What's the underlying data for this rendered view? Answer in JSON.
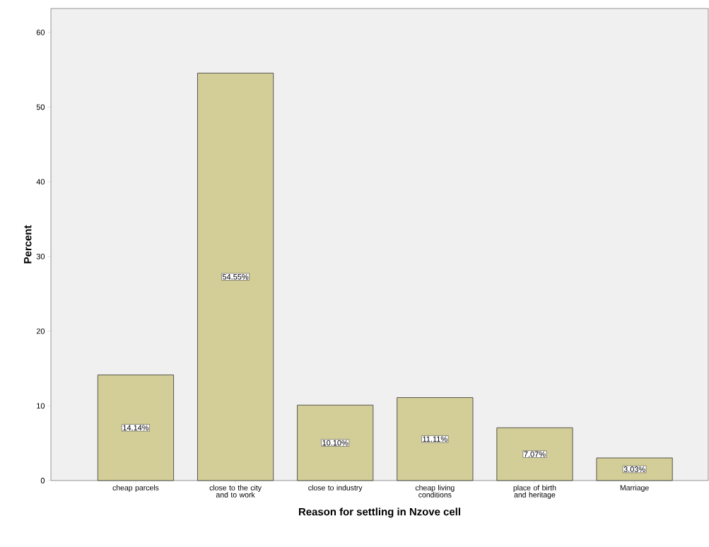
{
  "chart_data": {
    "type": "bar",
    "categories": [
      "cheap parcels",
      "close to the city and to work",
      "close to industry",
      "cheap living conditions",
      "place of birth and heritage",
      "Marriage"
    ],
    "values": [
      14.14,
      54.55,
      10.1,
      11.11,
      7.07,
      3.03
    ],
    "value_labels": [
      "14.14%",
      "54.55%",
      "10.10%",
      "11.11%",
      "7.07%",
      "3.03%"
    ],
    "color": "#d3ce97",
    "xlabel": "Reason for settling in Nzove cell",
    "ylabel": "Percent",
    "ylim": [
      0,
      63.2
    ],
    "yticks": [
      0,
      10,
      20,
      30,
      40,
      50,
      60
    ]
  }
}
